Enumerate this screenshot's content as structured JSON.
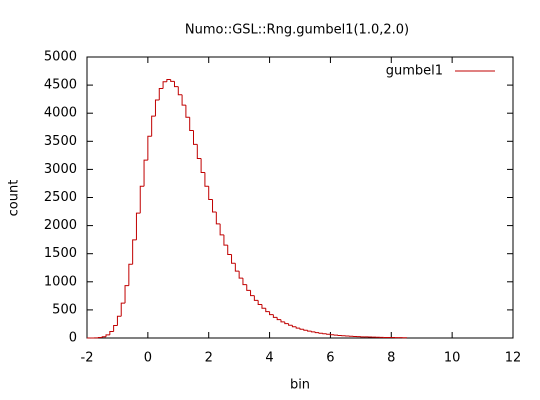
{
  "chart_data": {
    "type": "histogram",
    "title": "Numo::GSL::Rng.gumbel1(1.0,2.0)",
    "xlabel": "bin",
    "ylabel": "count",
    "series": [
      {
        "name": "gumbel1",
        "color": "#c00000",
        "bins": [
          -2,
          -1.875,
          -1.75,
          -1.625,
          -1.5,
          -1.375,
          -1.25,
          -1.125,
          -1,
          -0.875,
          -0.75,
          -0.625,
          -0.5,
          -0.375,
          -0.25,
          -0.125,
          0,
          0.125,
          0.25,
          0.375,
          0.5,
          0.625,
          0.75,
          0.875,
          1,
          1.125,
          1.25,
          1.375,
          1.5,
          1.625,
          1.75,
          1.875,
          2,
          2.125,
          2.25,
          2.375,
          2.5,
          2.625,
          2.75,
          2.875,
          3,
          3.125,
          3.25,
          3.375,
          3.5,
          3.625,
          3.75,
          3.875,
          4,
          4.125,
          4.25,
          4.375,
          4.5,
          4.625,
          4.75,
          4.875,
          5,
          5.125,
          5.25,
          5.375,
          5.5,
          5.625,
          5.75,
          5.875,
          6,
          6.125,
          6.25,
          6.375,
          6.5,
          6.625,
          6.75,
          6.875,
          7,
          7.125,
          7.25,
          7.375,
          7.5,
          7.625,
          7.75,
          7.875,
          8,
          8.125,
          8.25,
          8.375,
          8.5
        ],
        "values": [
          0,
          1,
          3,
          9,
          23,
          55,
          116,
          222,
          386,
          621,
          931,
          1312,
          1747,
          2221,
          2701,
          3166,
          3589,
          3949,
          4234,
          4439,
          4559,
          4599,
          4566,
          4473,
          4329,
          4144,
          3928,
          3693,
          3446,
          3195,
          2944,
          2700,
          2465,
          2241,
          2030,
          1835,
          1652,
          1485,
          1331,
          1191,
          1065,
          950,
          847,
          754,
          670,
          596,
          529,
          469,
          416,
          368,
          326,
          288,
          256,
          226,
          200,
          176,
          156,
          138,
          122,
          108,
          96,
          85,
          75,
          66,
          58,
          51,
          45,
          40,
          35,
          31,
          27,
          24,
          21,
          19,
          17,
          15,
          13,
          11,
          10,
          9,
          8,
          7,
          6,
          5
        ]
      }
    ],
    "xlim": [
      -2,
      12
    ],
    "xticks": [
      -2,
      0,
      2,
      4,
      6,
      8,
      10,
      12
    ],
    "ylim": [
      0,
      5000
    ],
    "yticks": [
      0,
      500,
      1000,
      1500,
      2000,
      2500,
      3000,
      3500,
      4000,
      4500,
      5000
    ],
    "legend": "upper right"
  }
}
